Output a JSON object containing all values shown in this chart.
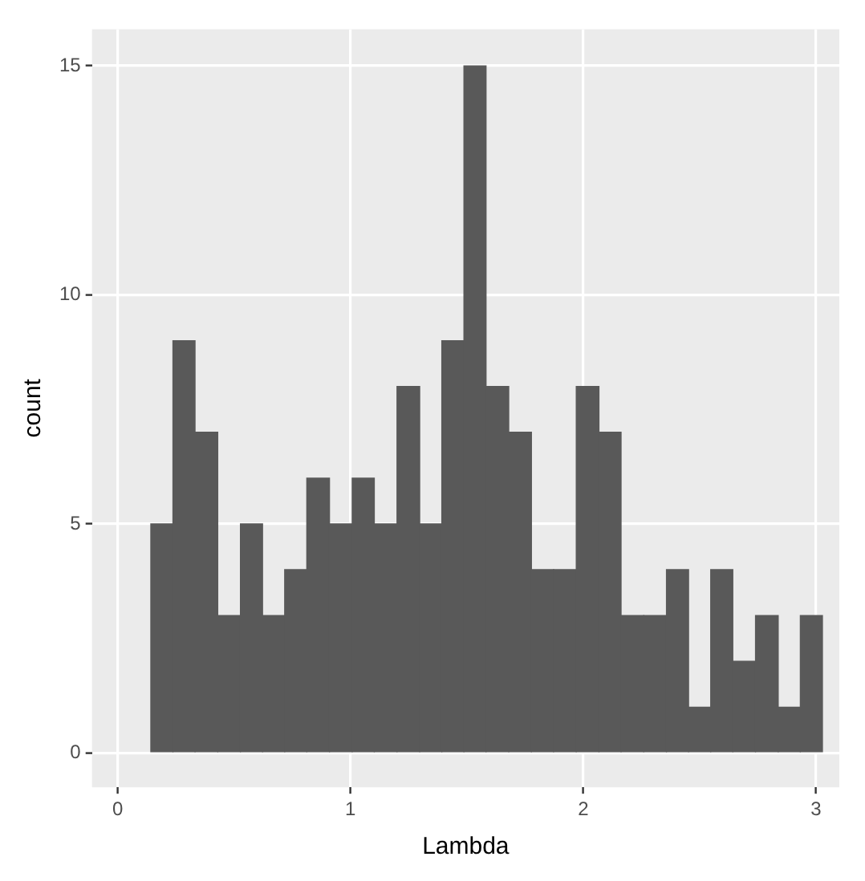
{
  "chart_data": {
    "type": "histogram",
    "xlabel": "Lambda",
    "ylabel": "count",
    "bins": [
      0.14,
      0.24,
      0.33,
      0.43,
      0.53,
      0.62,
      0.72,
      0.81,
      0.91,
      1.01,
      1.1,
      1.2,
      1.3,
      1.39,
      1.49,
      1.58,
      1.68,
      1.78,
      1.87,
      1.97,
      2.07,
      2.16,
      2.26,
      2.36,
      2.45,
      2.55,
      2.64,
      2.74,
      2.84,
      2.93,
      3.03
    ],
    "values": [
      5,
      9,
      7,
      3,
      5,
      3,
      4,
      6,
      5,
      6,
      5,
      8,
      5,
      9,
      15,
      8,
      7,
      4,
      4,
      8,
      7,
      3,
      3,
      4,
      1,
      4,
      2,
      3,
      1,
      3
    ],
    "color": "#595959",
    "xlim": [
      -0.11,
      3.1
    ],
    "ylim": [
      -0.75,
      15.8
    ],
    "xticks": [
      0,
      1,
      2,
      3
    ],
    "yticks": [
      0,
      5,
      10,
      15
    ],
    "grid": true
  }
}
